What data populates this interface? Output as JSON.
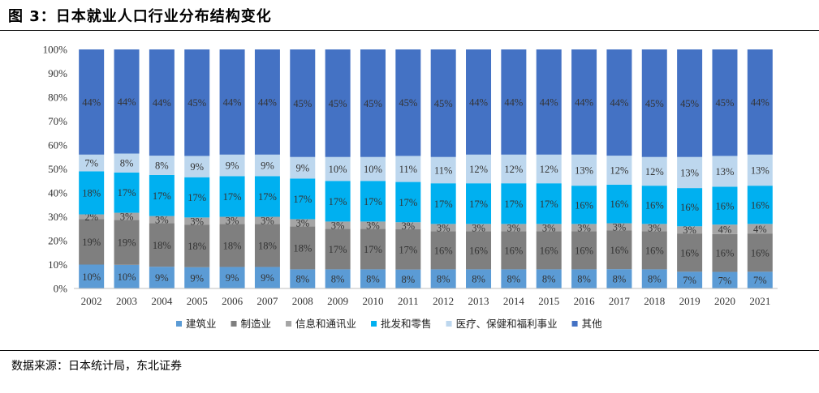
{
  "figure": {
    "title": "图 3：日本就业人口行业分布结构变化",
    "source": "数据来源：日本统计局，东北证券"
  },
  "chart_data": {
    "type": "bar",
    "stacked": true,
    "normalized": true,
    "categories": [
      "2002",
      "2003",
      "2004",
      "2005",
      "2006",
      "2007",
      "2008",
      "2009",
      "2010",
      "2011",
      "2012",
      "2013",
      "2014",
      "2015",
      "2016",
      "2017",
      "2018",
      "2019",
      "2020",
      "2021"
    ],
    "ylim": [
      0,
      100
    ],
    "yticks": [
      "0%",
      "10%",
      "20%",
      "30%",
      "40%",
      "50%",
      "60%",
      "70%",
      "80%",
      "90%",
      "100%"
    ],
    "legend_position": "bottom",
    "series": [
      {
        "name": "建筑业",
        "color": "#5B9BD5",
        "values": [
          10,
          10,
          9,
          9,
          9,
          9,
          8,
          8,
          8,
          8,
          8,
          8,
          8,
          8,
          8,
          8,
          8,
          7,
          7,
          7
        ]
      },
      {
        "name": "制造业",
        "color": "#7F7F7F",
        "values": [
          19,
          19,
          18,
          18,
          18,
          18,
          18,
          17,
          17,
          17,
          16,
          16,
          16,
          16,
          16,
          16,
          16,
          16,
          16,
          16
        ]
      },
      {
        "name": "信息和通讯业",
        "color": "#A5A5A5",
        "values": [
          2,
          3,
          3,
          3,
          3,
          3,
          3,
          3,
          3,
          3,
          3,
          3,
          3,
          3,
          3,
          3,
          3,
          3,
          4,
          4
        ]
      },
      {
        "name": "批发和零售",
        "color": "#00B0F0",
        "values": [
          18,
          17,
          17,
          17,
          17,
          17,
          17,
          17,
          17,
          17,
          17,
          17,
          17,
          17,
          16,
          16,
          16,
          16,
          16,
          16
        ]
      },
      {
        "name": "医疗、保健和福利事业",
        "color": "#BDD7EE",
        "values": [
          7,
          8,
          8,
          9,
          9,
          9,
          9,
          10,
          10,
          11,
          11,
          12,
          12,
          12,
          13,
          12,
          12,
          13,
          13,
          13
        ]
      },
      {
        "name": "其他",
        "color": "#4472C4",
        "values": [
          44,
          44,
          44,
          45,
          44,
          44,
          45,
          45,
          45,
          45,
          45,
          44,
          44,
          44,
          44,
          44,
          45,
          45,
          45,
          44
        ]
      }
    ]
  }
}
